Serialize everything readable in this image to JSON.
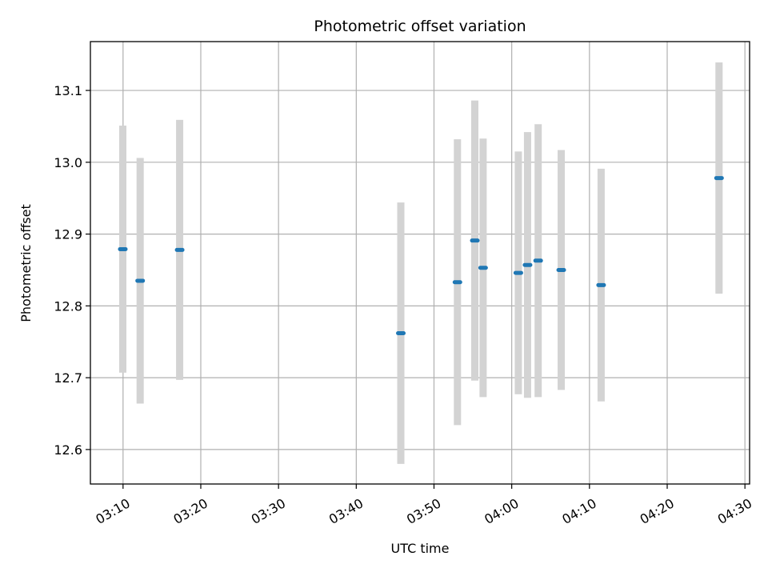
{
  "chart_data": {
    "type": "scatter",
    "title": "Photometric offset variation",
    "xlabel": "UTC time",
    "ylabel": "Photometric offset",
    "x_tick_labels": [
      "03:10",
      "03:20",
      "03:30",
      "03:40",
      "03:50",
      "04:00",
      "04:10",
      "04:20",
      "04:30"
    ],
    "x_tick_minutes": [
      190,
      200,
      210,
      220,
      230,
      240,
      250,
      260,
      270
    ],
    "y_ticks": [
      12.6,
      12.7,
      12.8,
      12.9,
      13.0,
      13.1
    ],
    "y_tick_labels": [
      "12.6",
      "12.7",
      "12.8",
      "12.9",
      "13.0",
      "13.1"
    ],
    "xlim_minutes": [
      185.8,
      270.6
    ],
    "ylim": [
      12.552,
      13.168
    ],
    "grid": true,
    "colors": {
      "point": "#1f77b4",
      "errorbar": "#d3d3d3",
      "grid": "#b0b0b0",
      "axis": "#000000"
    },
    "points": [
      {
        "time": "03:09:58",
        "y": 12.879,
        "err": 0.172
      },
      {
        "time": "03:12:12",
        "y": 12.835,
        "err": 0.171
      },
      {
        "time": "03:17:17",
        "y": 12.878,
        "err": 0.181
      },
      {
        "time": "03:45:44",
        "y": 12.762,
        "err": 0.182
      },
      {
        "time": "03:53:01",
        "y": 12.833,
        "err": 0.199
      },
      {
        "time": "03:55:15",
        "y": 12.891,
        "err": 0.195
      },
      {
        "time": "03:56:19",
        "y": 12.853,
        "err": 0.18
      },
      {
        "time": "04:00:51",
        "y": 12.846,
        "err": 0.169
      },
      {
        "time": "04:02:02",
        "y": 12.857,
        "err": 0.185
      },
      {
        "time": "04:03:24",
        "y": 12.863,
        "err": 0.19
      },
      {
        "time": "04:06:22",
        "y": 12.85,
        "err": 0.167
      },
      {
        "time": "04:11:30",
        "y": 12.829,
        "err": 0.162
      },
      {
        "time": "04:26:40",
        "y": 12.978,
        "err": 0.161
      }
    ]
  }
}
